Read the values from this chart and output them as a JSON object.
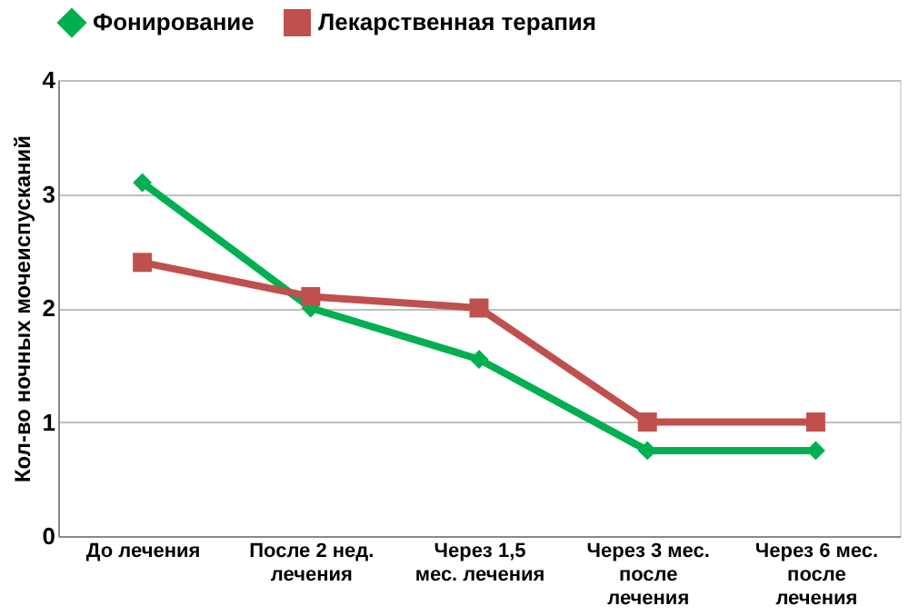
{
  "chart_data": {
    "type": "line",
    "ylabel": "Кол-во ночных мочеиспусканий",
    "categories": [
      "До лечения",
      "После 2 нед. лечения",
      "Через 1,5 мес. лечения",
      "Через 3 мес. после лечения",
      "Через 6 мес. после лечения"
    ],
    "series": [
      {
        "name": "Фонирование",
        "color": "#00b050",
        "marker": "diamond",
        "values": [
          3.1,
          2.0,
          1.55,
          0.75,
          0.75
        ]
      },
      {
        "name": "Лекарственная терапия",
        "color": "#c0504d",
        "marker": "square",
        "values": [
          2.4,
          2.1,
          2.0,
          1.0,
          1.0
        ]
      }
    ],
    "ylim": [
      0,
      4
    ],
    "yticks": [
      0,
      1,
      2,
      3,
      4
    ],
    "grid": "y",
    "legend": "top",
    "line_style": "solid"
  }
}
